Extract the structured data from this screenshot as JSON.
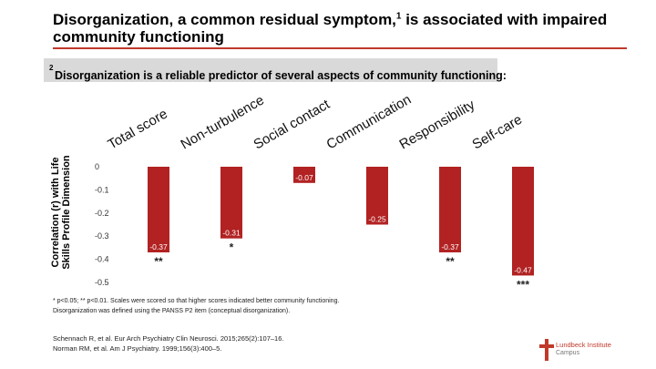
{
  "slide": {
    "title_main": "Disorganization, a common residual symptom,",
    "title_sup": "1",
    "title_tail": " is associated with impaired community functioning",
    "banner_text": "Disorganization is a reliable predictor of several aspects of community functioning:",
    "banner_sup": "2",
    "footnote_line1": "* p<0.05; ** p<0.01. Scales were scored so that higher scores indicated better community functioning.",
    "footnote_line2": "Disorganization was defined using the PANSS P2 item (conceptual disorganization).",
    "ref1": "Schennach R, et al. Eur Arch Psychiatry Clin Neurosci. 2015;265(2):107–16.",
    "ref2": "Norman RM, et al. Am J Psychiatry. 1999;156(3):400–5.",
    "logo_line1": "Lundbeck Institute",
    "logo_line2": "Campus"
  },
  "colors": {
    "bar": "#b22222",
    "accent": "#c0392b",
    "banner": "#d9d9d9"
  },
  "chart_data": {
    "type": "bar",
    "categories": [
      "Total score",
      "Non-turbulence",
      "Social contact",
      "Communication",
      "Responsibility",
      "Self-care"
    ],
    "values": [
      -0.37,
      -0.31,
      -0.07,
      -0.25,
      -0.37,
      -0.47
    ],
    "value_labels": [
      "-0.37",
      "-0.31",
      "-0.07",
      "-0.25",
      "-0.37",
      "-0.47"
    ],
    "significance": [
      "**",
      "*",
      "",
      "",
      "**",
      "***"
    ],
    "ylabel": "Correlation (r) with Life Skills Profile Dimension",
    "ylim": [
      -0.5,
      0
    ],
    "yticks": [
      0,
      -0.1,
      -0.2,
      -0.3,
      -0.4,
      -0.5
    ],
    "ytick_labels": [
      "0",
      "-0.1",
      "-0.2",
      "-0.3",
      "-0.4",
      "-0.5"
    ],
    "grid": false
  }
}
